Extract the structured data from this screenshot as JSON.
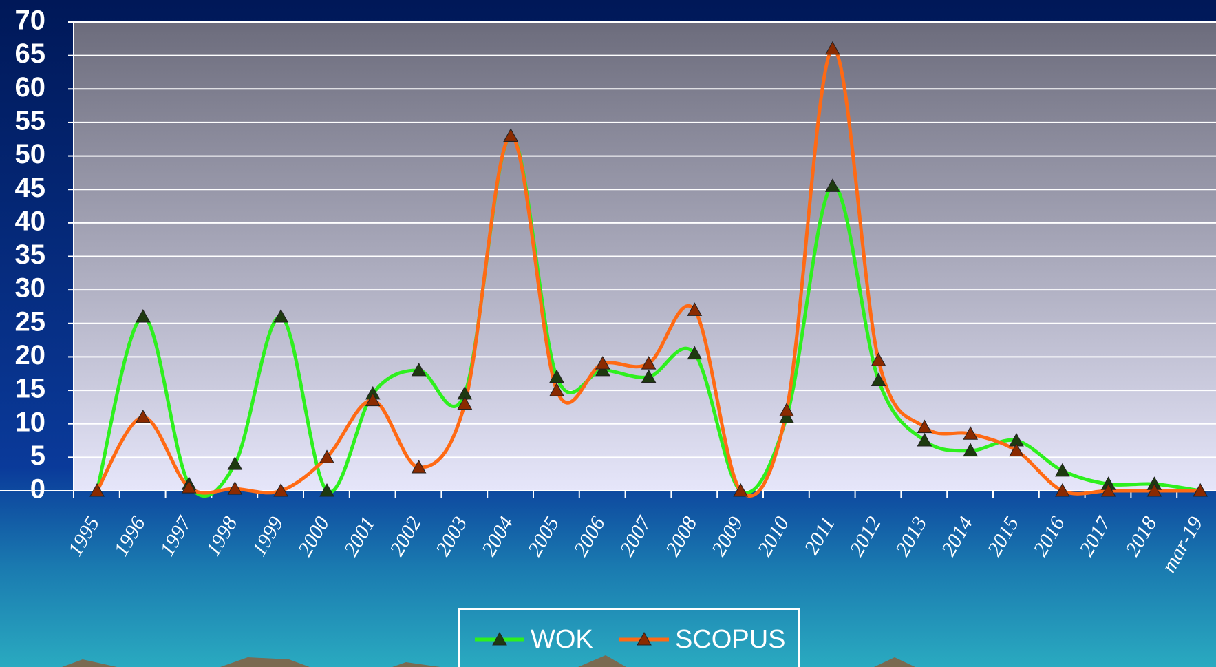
{
  "chart_data": {
    "type": "line",
    "categories": [
      "1995",
      "1996",
      "1997",
      "1998",
      "1999",
      "2000",
      "2001",
      "2002",
      "2003",
      "2004",
      "2005",
      "2006",
      "2007",
      "2008",
      "2009",
      "2010",
      "2011",
      "2012",
      "2013",
      "2014",
      "2015",
      "2016",
      "2017",
      "2018",
      "mar-19"
    ],
    "series": [
      {
        "name": "WOK",
        "color": "#2ef01e",
        "values": [
          0,
          26,
          1,
          4,
          26,
          0,
          14.5,
          18,
          14.5,
          53,
          17,
          18,
          17,
          20.5,
          0,
          11,
          45.5,
          16.5,
          7.5,
          6,
          7.5,
          3,
          1,
          1,
          0
        ]
      },
      {
        "name": "SCOPUS",
        "color": "#ff6a14",
        "values": [
          0,
          11,
          0.5,
          0.3,
          0,
          5,
          13.5,
          3.5,
          13,
          53,
          15,
          19,
          19,
          27,
          0,
          12,
          66,
          19.5,
          9.5,
          8.5,
          6,
          0,
          0,
          0,
          0
        ]
      }
    ],
    "ylim": [
      0,
      70
    ],
    "yticks": [
      0,
      5,
      10,
      15,
      20,
      25,
      30,
      35,
      40,
      45,
      50,
      55,
      60,
      65,
      70
    ],
    "grid": true,
    "legend": "bottom"
  }
}
